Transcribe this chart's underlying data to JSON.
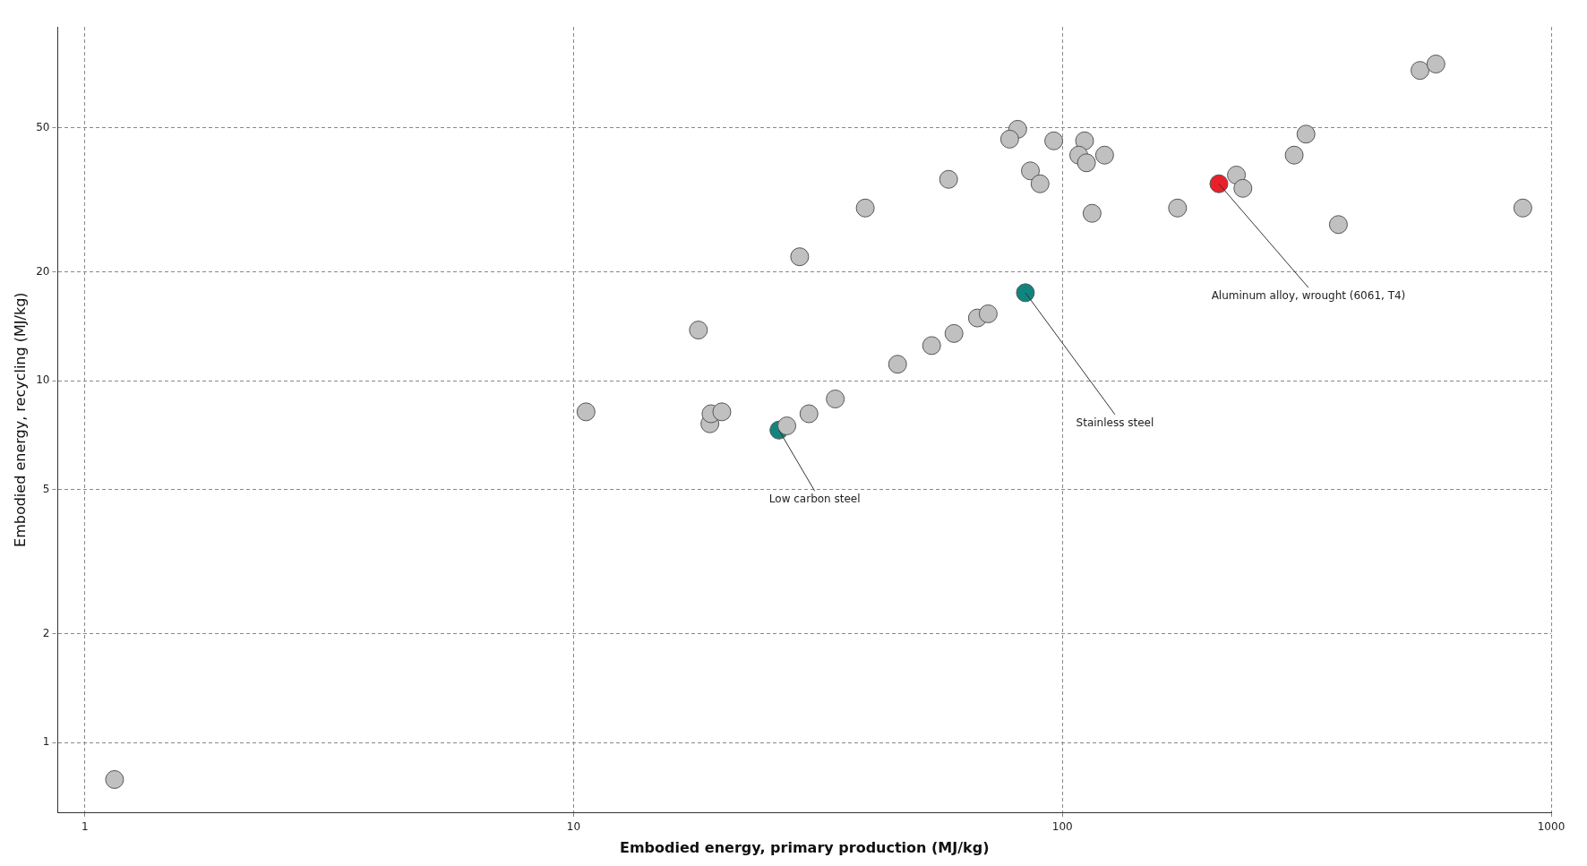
{
  "chart_data": {
    "type": "scatter",
    "xlabel": "Embodied energy, primary production (MJ/kg)",
    "ylabel": "Embodied energy, recycling (MJ/kg)",
    "log": "xy",
    "xlim": [
      0.88,
      1000
    ],
    "ylim": [
      0.64,
      95
    ],
    "xticks": [
      1,
      10,
      100,
      1000
    ],
    "yticks": [
      1,
      2,
      5,
      10,
      20,
      50
    ],
    "grid": true,
    "marker": "circle",
    "line_style": "dashed",
    "series": [
      {
        "color": "#c0c0c0",
        "x": [
          1.15,
          10.6,
          18,
          19,
          19.1,
          20.1,
          27.3,
          29,
          30.3,
          34.3,
          39.5,
          46,
          54,
          60,
          58.5,
          67,
          70.5,
          81,
          78,
          86,
          90,
          96,
          111,
          108,
          112,
          122,
          115,
          172,
          227,
          234,
          298,
          315,
          367,
          539,
          581,
          875
        ],
        "values": [
          0.79,
          8.2,
          13.8,
          7.6,
          8.1,
          8.2,
          7.5,
          22,
          8.1,
          8.9,
          30,
          11.1,
          12.5,
          13.5,
          36,
          14.9,
          15.3,
          49.5,
          46.5,
          38,
          35,
          46,
          46,
          42,
          40,
          42,
          29,
          30,
          37,
          34,
          42,
          48,
          27,
          72,
          75,
          30
        ]
      },
      {
        "color": "#e8202a",
        "x": [
          209
        ],
        "values": [
          35
        ]
      },
      {
        "color": "#10857f",
        "x": [
          26.3,
          84
        ],
        "values": [
          7.3,
          17.5
        ]
      }
    ],
    "annotations": [
      {
        "text": "Aluminum alloy, wrought (6061, T4)",
        "x": 209,
        "y": 35
      },
      {
        "text": "Stainless steel",
        "x": 84,
        "y": 17.5
      },
      {
        "text": "Low carbon steel",
        "x": 26.3,
        "y": 7.3
      }
    ]
  }
}
